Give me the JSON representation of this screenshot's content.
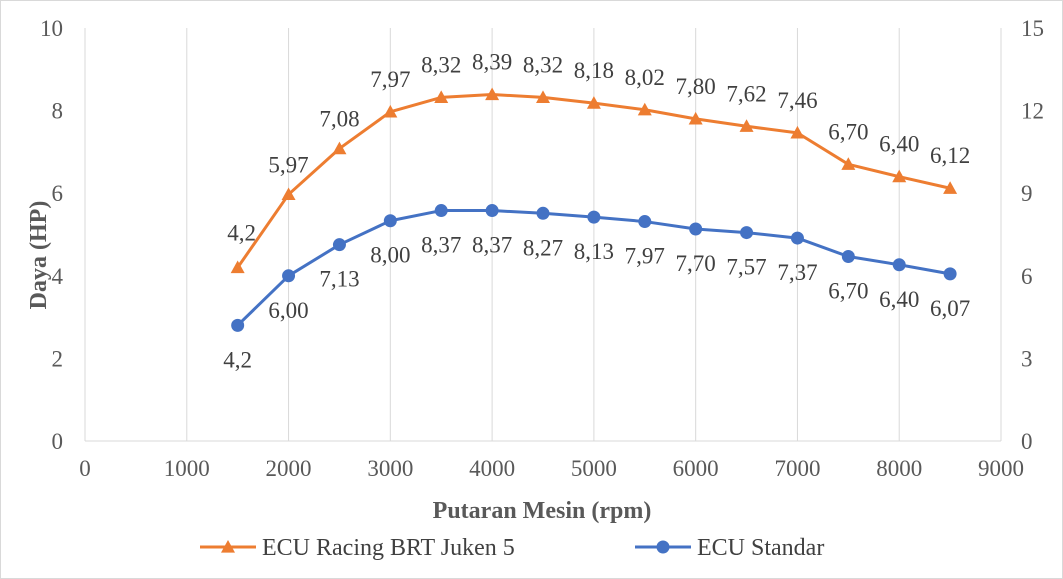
{
  "chart_data": {
    "type": "line",
    "title": "",
    "xlabel": "Putaran Mesin (rpm)",
    "ylabel": "Daya (HP)",
    "xlim": [
      0,
      9000
    ],
    "ylim": [
      0,
      10
    ],
    "y2lim": [
      0,
      15
    ],
    "xticks": [
      0,
      1000,
      2000,
      3000,
      4000,
      5000,
      6000,
      7000,
      8000,
      9000
    ],
    "yticks": [
      0,
      2,
      4,
      6,
      8,
      10
    ],
    "y2ticks": [
      0,
      3,
      6,
      9,
      12,
      15
    ],
    "grid": "vertical",
    "legend": "bottom",
    "x": [
      1500,
      2000,
      2500,
      3000,
      3500,
      4000,
      4500,
      5000,
      5500,
      6000,
      6500,
      7000,
      7500,
      8000,
      8500
    ],
    "series": [
      {
        "name": "ECU Racing BRT Juken 5",
        "color": "#ED7D31",
        "marker": "triangle",
        "axis": "left",
        "values": [
          4.2,
          5.97,
          7.08,
          7.97,
          8.32,
          8.39,
          8.32,
          8.18,
          8.02,
          7.8,
          7.62,
          7.46,
          6.7,
          6.4,
          6.12
        ],
        "labels": [
          "4,2",
          "5,97",
          "7,08",
          "7,97",
          "8,32",
          "8,39",
          "8,32",
          "8,18",
          "8,02",
          "7,80",
          "7,62",
          "7,46",
          "6,70",
          "6,40",
          "6,12"
        ]
      },
      {
        "name": "ECU Standar",
        "color": "#4472C4",
        "marker": "circle",
        "axis": "right",
        "values": [
          4.2,
          6.0,
          7.13,
          8.0,
          8.37,
          8.37,
          8.27,
          8.13,
          7.97,
          7.7,
          7.57,
          7.37,
          6.7,
          6.4,
          6.07
        ],
        "labels": [
          "4,2",
          "6,00",
          "7,13",
          "8,00",
          "8,37",
          "8,37",
          "8,27",
          "8,13",
          "7,97",
          "7,70",
          "7,57",
          "7,37",
          "6,70",
          "6,40",
          "6,07"
        ]
      }
    ]
  }
}
